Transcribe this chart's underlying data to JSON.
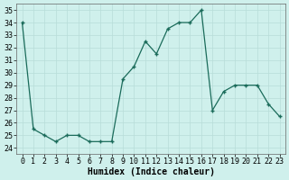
{
  "x": [
    0,
    1,
    2,
    3,
    4,
    5,
    6,
    7,
    8,
    9,
    10,
    11,
    12,
    13,
    14,
    15,
    16,
    17,
    18,
    19,
    20,
    21,
    22,
    23
  ],
  "y": [
    34,
    25.5,
    25,
    24.5,
    25,
    25,
    24.5,
    24.5,
    24.5,
    29.5,
    30.5,
    32.5,
    31.5,
    33.5,
    34,
    34,
    35,
    27,
    28.5,
    29,
    29,
    29,
    27.5,
    26.5
  ],
  "xlabel": "Humidex (Indice chaleur)",
  "ylabel": "",
  "ylim": [
    23.5,
    35.5
  ],
  "xlim": [
    -0.5,
    23.5
  ],
  "yticks": [
    24,
    25,
    26,
    27,
    28,
    29,
    30,
    31,
    32,
    33,
    34,
    35
  ],
  "xticks": [
    0,
    1,
    2,
    3,
    4,
    5,
    6,
    7,
    8,
    9,
    10,
    11,
    12,
    13,
    14,
    15,
    16,
    17,
    18,
    19,
    20,
    21,
    22,
    23
  ],
  "line_color": "#1a6b5a",
  "marker_color": "#1a6b5a",
  "bg_color": "#cff0ec",
  "grid_color": "#b8ddd8",
  "label_fontsize": 7,
  "tick_fontsize": 6
}
